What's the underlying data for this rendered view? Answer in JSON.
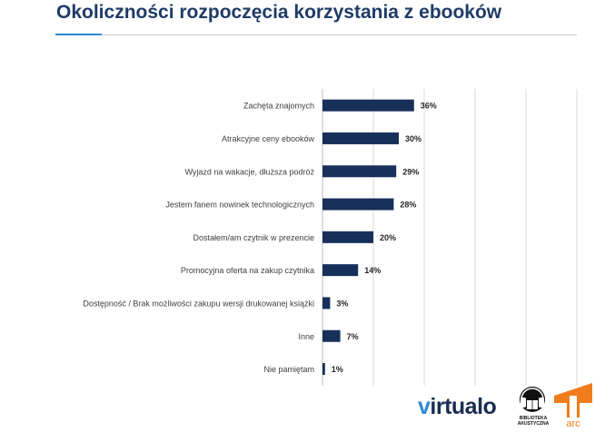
{
  "header": {
    "title": "Okoliczności rozpoczęcia korzystania z ebooków"
  },
  "chart_data": {
    "type": "bar",
    "orientation": "horizontal",
    "title": "Okoliczności rozpoczęcia korzystania z ebooków",
    "xlabel": "",
    "ylabel": "",
    "xlim": [
      0,
      100
    ],
    "value_suffix": "%",
    "categories": [
      "Zachęta znajomych",
      "Atrakcyjne ceny ebooków",
      "Wyjazd na wakacje, dłuższa podróż",
      "Jestem fanem nowinek technologicznych",
      "Dostałem/am czytnik w prezencie",
      "Promocyjna oferta na zakup czytnika",
      "Dostępność / Brak możliwości zakupu wersji drukowanej książki",
      "Inne",
      "Nie pamiętam"
    ],
    "values": [
      36,
      30,
      29,
      28,
      20,
      14,
      3,
      7,
      1
    ],
    "bar_color": "#17305a",
    "grid": true
  },
  "logos": {
    "virtualo": {
      "prefix": "v",
      "rest": "irtualo"
    },
    "biblioteka_line1": "BIBLIOTEKA",
    "biblioteka_line2": "AKUSTYCZNA",
    "arc_text": "arc"
  },
  "colors": {
    "title": "#1f3b66",
    "accent": "#2f89d4",
    "bar": "#17305a"
  }
}
